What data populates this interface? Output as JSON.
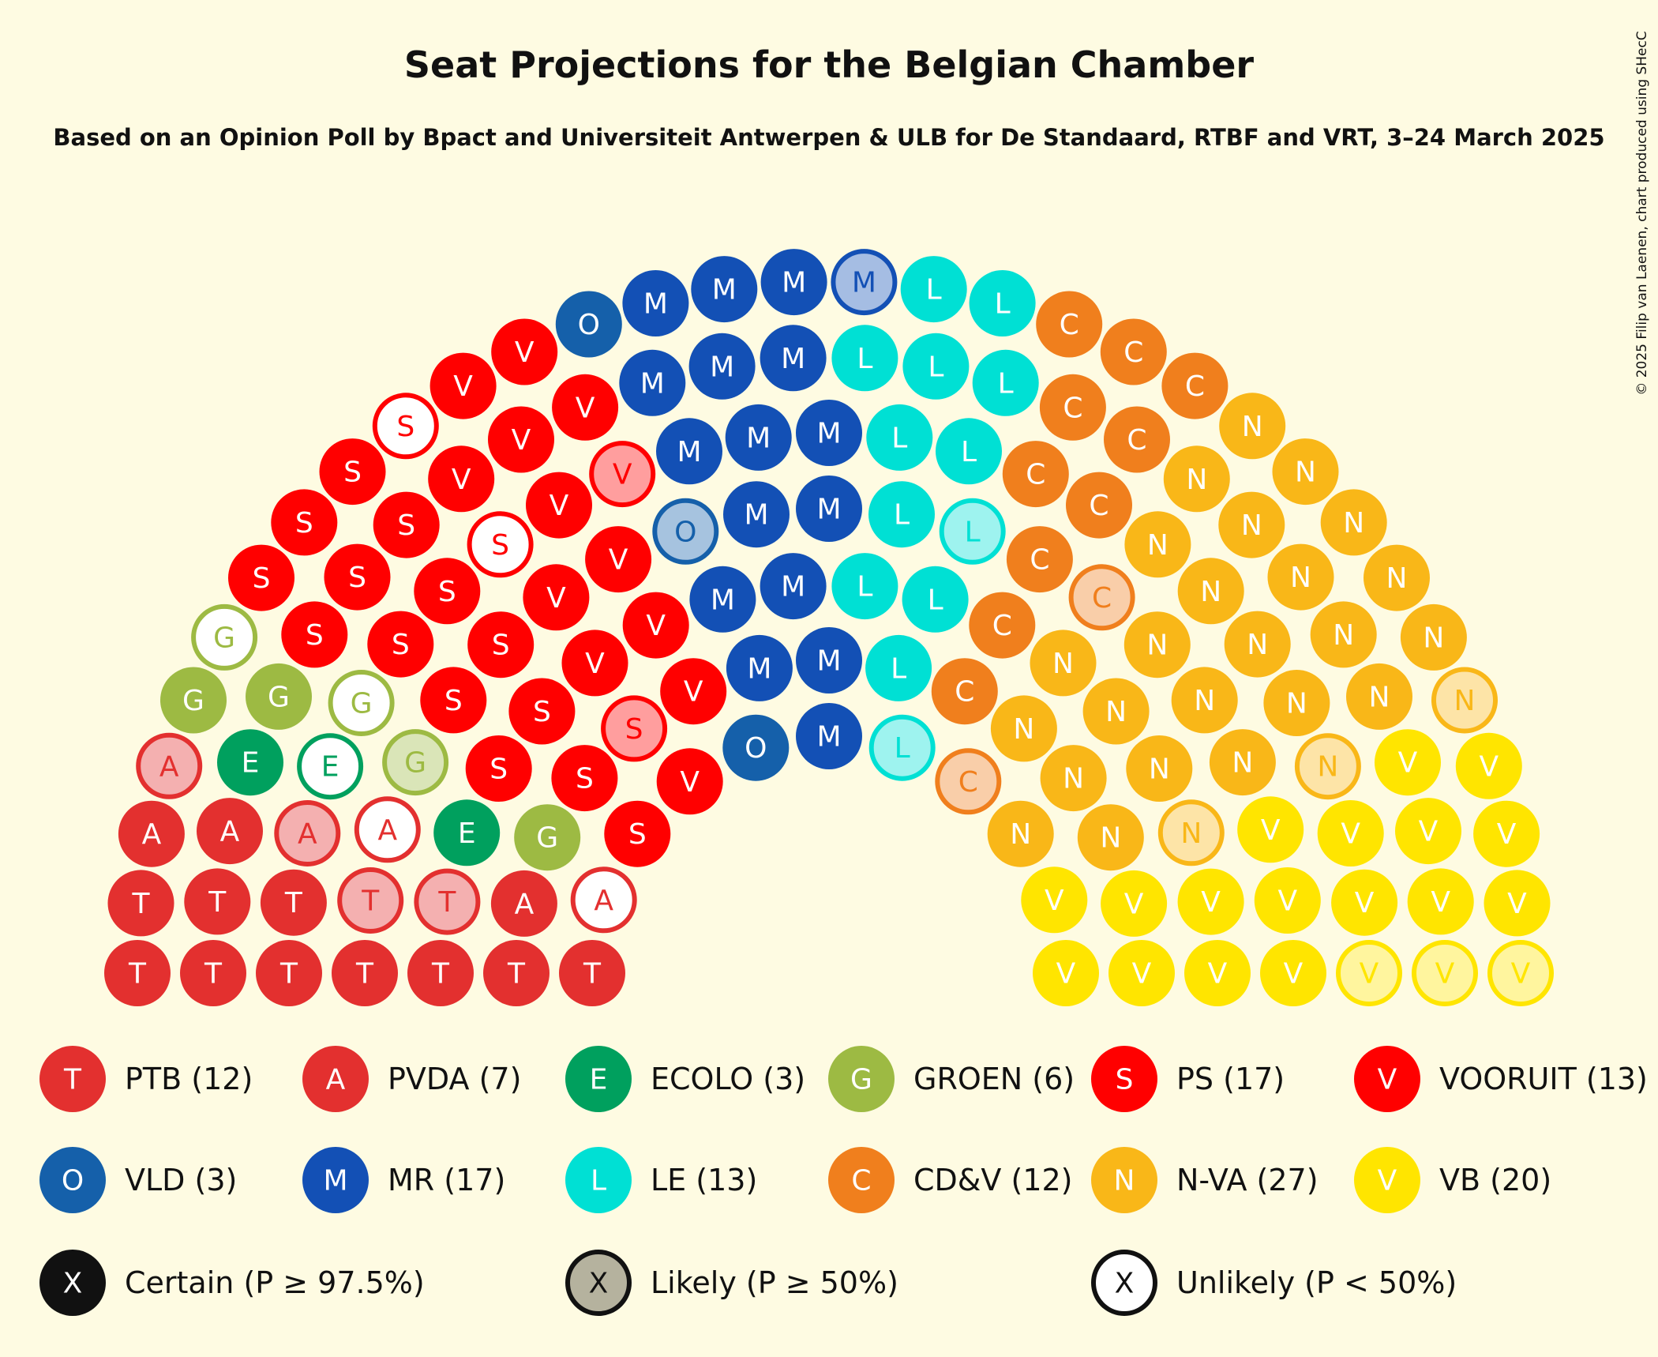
{
  "chart_data": {
    "type": "parliament",
    "title": "Seat Projections for the Belgian Chamber",
    "subtitle": "Based on an Opinion Poll by Bpact and Universiteit Antwerpen & ULB for De Standaard, RTBF and VRT, 3–24 March 2025",
    "copyright": "© 2025 Filip van Laenen, chart produced using SHecC",
    "total_seats": 150,
    "parties": [
      {
        "id": "ptb",
        "name": "PTB",
        "letter": "T",
        "seats": 12,
        "certain": 10,
        "likely": 2,
        "unlikely": 0,
        "color": "#E3302F",
        "label": "PTB (12)"
      },
      {
        "id": "pvda",
        "name": "PVDA",
        "letter": "A",
        "seats": 7,
        "certain": 3,
        "likely": 2,
        "unlikely": 2,
        "color": "#E3302F",
        "label": "PVDA (7)"
      },
      {
        "id": "ecolo",
        "name": "ECOLO",
        "letter": "E",
        "seats": 3,
        "certain": 2,
        "likely": 0,
        "unlikely": 1,
        "color": "#00A05E",
        "label": "ECOLO (3)"
      },
      {
        "id": "groen",
        "name": "GROEN",
        "letter": "G",
        "seats": 6,
        "certain": 3,
        "likely": 1,
        "unlikely": 2,
        "color": "#9DBA43",
        "label": "GROEN (6)"
      },
      {
        "id": "ps",
        "name": "PS",
        "letter": "S",
        "seats": 17,
        "certain": 14,
        "likely": 1,
        "unlikely": 2,
        "color": "#FF0000",
        "label": "PS (17)"
      },
      {
        "id": "vooruit",
        "name": "VOORUIT",
        "letter": "V",
        "seats": 13,
        "certain": 12,
        "likely": 1,
        "unlikely": 0,
        "color": "#FF0000",
        "label": "VOORUIT (13)"
      },
      {
        "id": "vld",
        "name": "VLD",
        "letter": "O",
        "seats": 3,
        "certain": 2,
        "likely": 1,
        "unlikely": 0,
        "color": "#1560AA",
        "label": "VLD (3)"
      },
      {
        "id": "mr",
        "name": "MR",
        "letter": "M",
        "seats": 17,
        "certain": 16,
        "likely": 1,
        "unlikely": 0,
        "color": "#1350B5",
        "label": "MR (17)"
      },
      {
        "id": "le",
        "name": "LE",
        "letter": "L",
        "seats": 13,
        "certain": 11,
        "likely": 2,
        "unlikely": 0,
        "color": "#00E0D4",
        "label": "LE (13)"
      },
      {
        "id": "cdv",
        "name": "CD&V",
        "letter": "C",
        "seats": 12,
        "certain": 10,
        "likely": 2,
        "unlikely": 0,
        "color": "#F07F1D",
        "label": "CD&V (12)"
      },
      {
        "id": "nva",
        "name": "N-VA",
        "letter": "N",
        "seats": 27,
        "certain": 24,
        "likely": 3,
        "unlikely": 0,
        "color": "#F9B718",
        "label": "N-VA (27)"
      },
      {
        "id": "vb",
        "name": "VB",
        "letter": "V",
        "seats": 20,
        "certain": 17,
        "likely": 3,
        "unlikely": 0,
        "color": "#FFE500",
        "label": "VB (20)"
      }
    ],
    "status_legend": [
      {
        "status": "certain",
        "symbol": "X",
        "label": "Certain (P ≥ 97.5%)"
      },
      {
        "status": "likely",
        "symbol": "X",
        "label": "Likely (P ≥ 50%)"
      },
      {
        "status": "unlikely",
        "symbol": "X",
        "label": "Unlikely (P < 50%)"
      }
    ]
  }
}
